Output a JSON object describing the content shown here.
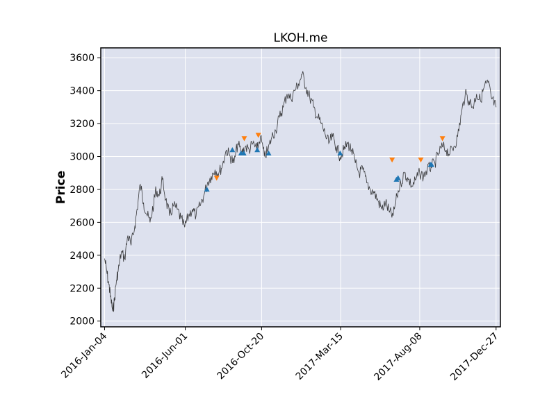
{
  "chart_data": {
    "type": "line",
    "title": "LKOH.me",
    "xlabel": "",
    "ylabel": "Price",
    "xlim": [
      "2015-12-28",
      "2018-01-04"
    ],
    "ylim": [
      1965,
      3660
    ],
    "grid": true,
    "x_ticks": [
      "2016-Jan-04",
      "2016-Jun-01",
      "2016-Oct-20",
      "2017-Mar-15",
      "2017-Aug-08",
      "2017-Dec-27"
    ],
    "y_ticks": [
      2000,
      2200,
      2400,
      2600,
      2800,
      3000,
      3200,
      3400,
      3600
    ],
    "colors": {
      "price": "#1a1a1a",
      "buy": "#1f77b4",
      "sell": "#ff7f0e",
      "plot_bg": "#dde1ee",
      "grid": "#ffffff"
    },
    "series": [
      {
        "kind": "price",
        "points": [
          [
            "2016-01-04",
            2380
          ],
          [
            "2016-01-08",
            2300
          ],
          [
            "2016-01-12",
            2220
          ],
          [
            "2016-01-15",
            2150
          ],
          [
            "2016-01-19",
            2060
          ],
          [
            "2016-01-22",
            2120
          ],
          [
            "2016-01-26",
            2250
          ],
          [
            "2016-01-29",
            2300
          ],
          [
            "2016-02-04",
            2420
          ],
          [
            "2016-02-10",
            2380
          ],
          [
            "2016-02-16",
            2520
          ],
          [
            "2016-02-22",
            2460
          ],
          [
            "2016-02-29",
            2580
          ],
          [
            "2016-03-04",
            2680
          ],
          [
            "2016-03-10",
            2830
          ],
          [
            "2016-03-16",
            2720
          ],
          [
            "2016-03-22",
            2650
          ],
          [
            "2016-03-28",
            2600
          ],
          [
            "2016-04-04",
            2720
          ],
          [
            "2016-04-08",
            2800
          ],
          [
            "2016-04-14",
            2760
          ],
          [
            "2016-04-20",
            2860
          ],
          [
            "2016-04-26",
            2740
          ],
          [
            "2016-05-03",
            2640
          ],
          [
            "2016-05-10",
            2700
          ],
          [
            "2016-05-17",
            2680
          ],
          [
            "2016-05-24",
            2620
          ],
          [
            "2016-05-31",
            2570
          ],
          [
            "2016-06-07",
            2640
          ],
          [
            "2016-06-14",
            2680
          ],
          [
            "2016-06-21",
            2640
          ],
          [
            "2016-06-28",
            2700
          ],
          [
            "2016-07-05",
            2760
          ],
          [
            "2016-07-12",
            2840
          ],
          [
            "2016-07-19",
            2880
          ],
          [
            "2016-07-26",
            2920
          ],
          [
            "2016-08-02",
            2900
          ],
          [
            "2016-08-09",
            2950
          ],
          [
            "2016-08-16",
            3040
          ],
          [
            "2016-08-23",
            3000
          ],
          [
            "2016-08-30",
            2960
          ],
          [
            "2016-09-06",
            3080
          ],
          [
            "2016-09-13",
            3020
          ],
          [
            "2016-09-20",
            3060
          ],
          [
            "2016-09-27",
            3040
          ],
          [
            "2016-10-04",
            3080
          ],
          [
            "2016-10-11",
            3040
          ],
          [
            "2016-10-18",
            3120
          ],
          [
            "2016-10-25",
            3000
          ],
          [
            "2016-11-01",
            3040
          ],
          [
            "2016-11-08",
            3120
          ],
          [
            "2016-11-15",
            3160
          ],
          [
            "2016-11-22",
            3240
          ],
          [
            "2016-11-29",
            3300
          ],
          [
            "2016-12-06",
            3380
          ],
          [
            "2016-12-13",
            3350
          ],
          [
            "2016-12-20",
            3400
          ],
          [
            "2016-12-27",
            3440
          ],
          [
            "2017-01-03",
            3500
          ],
          [
            "2017-01-10",
            3420
          ],
          [
            "2017-01-17",
            3360
          ],
          [
            "2017-01-24",
            3300
          ],
          [
            "2017-01-31",
            3240
          ],
          [
            "2017-02-07",
            3200
          ],
          [
            "2017-02-14",
            3140
          ],
          [
            "2017-02-21",
            3080
          ],
          [
            "2017-02-28",
            3120
          ],
          [
            "2017-03-07",
            3060
          ],
          [
            "2017-03-14",
            3000
          ],
          [
            "2017-03-21",
            3040
          ],
          [
            "2017-03-28",
            3080
          ],
          [
            "2017-04-04",
            3040
          ],
          [
            "2017-04-11",
            2960
          ],
          [
            "2017-04-18",
            2900
          ],
          [
            "2017-04-25",
            2920
          ],
          [
            "2017-05-02",
            2840
          ],
          [
            "2017-05-09",
            2800
          ],
          [
            "2017-05-16",
            2780
          ],
          [
            "2017-05-23",
            2730
          ],
          [
            "2017-05-30",
            2680
          ],
          [
            "2017-06-06",
            2720
          ],
          [
            "2017-06-13",
            2660
          ],
          [
            "2017-06-20",
            2640
          ],
          [
            "2017-06-27",
            2760
          ],
          [
            "2017-07-04",
            2840
          ],
          [
            "2017-07-11",
            2900
          ],
          [
            "2017-07-18",
            2860
          ],
          [
            "2017-07-25",
            2820
          ],
          [
            "2017-08-01",
            2860
          ],
          [
            "2017-08-08",
            2900
          ],
          [
            "2017-08-15",
            2880
          ],
          [
            "2017-08-22",
            2920
          ],
          [
            "2017-08-29",
            2940
          ],
          [
            "2017-09-05",
            2960
          ],
          [
            "2017-09-12",
            3020
          ],
          [
            "2017-09-19",
            3060
          ],
          [
            "2017-09-26",
            3040
          ],
          [
            "2017-10-03",
            3020
          ],
          [
            "2017-10-10",
            3060
          ],
          [
            "2017-10-17",
            3120
          ],
          [
            "2017-10-24",
            3260
          ],
          [
            "2017-10-31",
            3380
          ],
          [
            "2017-11-07",
            3340
          ],
          [
            "2017-11-14",
            3300
          ],
          [
            "2017-11-21",
            3380
          ],
          [
            "2017-11-28",
            3340
          ],
          [
            "2017-12-05",
            3420
          ],
          [
            "2017-12-12",
            3450
          ],
          [
            "2017-12-19",
            3350
          ],
          [
            "2017-12-27",
            3300
          ]
        ]
      },
      {
        "kind": "buy",
        "marker": "triangle-up",
        "points": [
          [
            "2016-07-11",
            2800
          ],
          [
            "2016-08-27",
            3040
          ],
          [
            "2016-09-12",
            3020
          ],
          [
            "2016-09-17",
            3020
          ],
          [
            "2016-10-12",
            3040
          ],
          [
            "2016-11-02",
            3020
          ],
          [
            "2017-03-14",
            3020
          ],
          [
            "2017-06-26",
            2860
          ],
          [
            "2017-06-29",
            2870
          ],
          [
            "2017-08-28",
            2950
          ],
          [
            "2017-08-30",
            2950
          ]
        ]
      },
      {
        "kind": "sell",
        "marker": "triangle-down",
        "points": [
          [
            "2016-07-29",
            2870
          ],
          [
            "2016-09-18",
            3110
          ],
          [
            "2016-10-14",
            3130
          ],
          [
            "2017-06-18",
            2980
          ],
          [
            "2017-08-10",
            2980
          ],
          [
            "2017-09-19",
            3110
          ]
        ]
      }
    ]
  }
}
